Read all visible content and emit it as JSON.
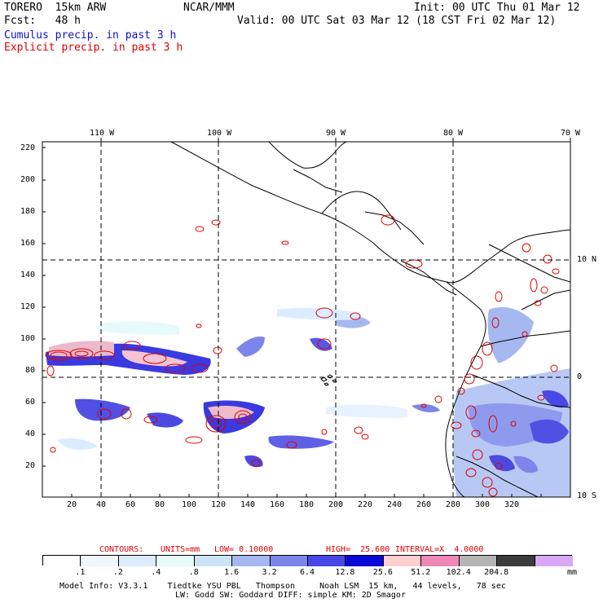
{
  "header": {
    "model": "TORERO  15km ARW",
    "org": "NCAR/MMM",
    "init": "Init: 00 UTC Thu 01 Mar 12",
    "fcst": "Fcst:   48 h",
    "valid": "Valid: 00 UTC Sat 03 Mar 12 (18 CST Fri 02 Mar 12)",
    "cumulus": "Cumulus precip. in past 3 h",
    "explicit": "Explicit precip. in past 3 h",
    "cumulus_color": "#1010c8",
    "explicit_color": "#e00000"
  },
  "map": {
    "lon_labels": [
      "110 W",
      "100 W",
      "90 W",
      "80 W",
      "70 W"
    ],
    "lat_labels": [
      "10 N",
      "0",
      "10 S"
    ],
    "y_ticks": [
      "220",
      "200",
      "180",
      "160",
      "140",
      "120",
      "100",
      "80",
      "60",
      "40",
      "20"
    ],
    "x_ticks": [
      "20",
      "40",
      "60",
      "80",
      "100",
      "120",
      "140",
      "160",
      "180",
      "200",
      "220",
      "240",
      "260",
      "280",
      "300",
      "320"
    ]
  },
  "contours": {
    "label": "CONTOURS:",
    "units": "UNITS=mm",
    "low": "LOW= 0.10000",
    "high": "HIGH=  25.600",
    "interval": "INTERVAL=X  4.0000",
    "color": "#e00000"
  },
  "colorbar": {
    "labels": [
      ".1",
      ".2",
      ".4",
      ".8",
      "1.6",
      "3.2",
      "6.4",
      "12.8",
      "25.6",
      "51.2",
      "102.4",
      "204.8"
    ],
    "colors": [
      "#ffffff",
      "#eef6ff",
      "#dcecff",
      "#e6fafa",
      "#cce4f8",
      "#a6b8f0",
      "#7c86ea",
      "#4848e8",
      "#0a0ad8",
      "#ffcece",
      "#ee88b8",
      "#b4b4b4",
      "#3c3c3c",
      "#d8a8f4"
    ],
    "unit": "mm"
  },
  "footer": {
    "line1": "Model Info: V3.3.1    Tiedtke YSU PBL   Thompson     Noah LSM  15 km,   44 levels,   78 sec",
    "line2": "LW: Godd SW: Goddard DIFF: simple KM: 2D Smagor"
  }
}
